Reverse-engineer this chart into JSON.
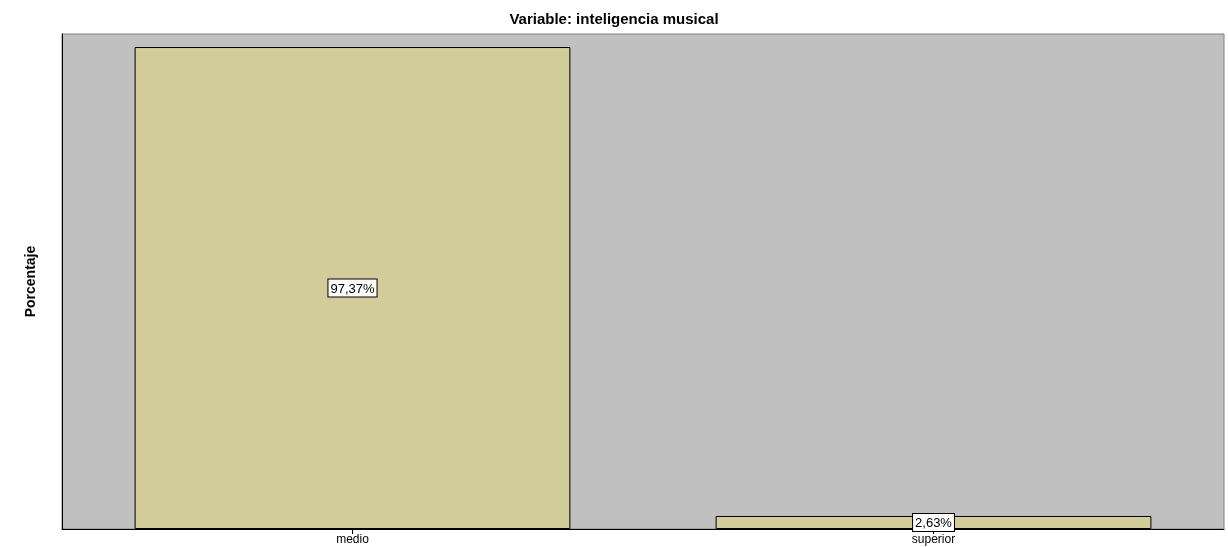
{
  "chart_data": {
    "type": "bar",
    "title": "Variable: inteligencia musical",
    "ylabel": "Porcentaje",
    "categories": [
      "medio",
      "superior"
    ],
    "values": [
      97.37,
      2.63
    ],
    "value_labels": [
      "97,37%",
      "2,63%"
    ],
    "color": "#d1cc98",
    "tick_labels": "x",
    "grid": false
  }
}
